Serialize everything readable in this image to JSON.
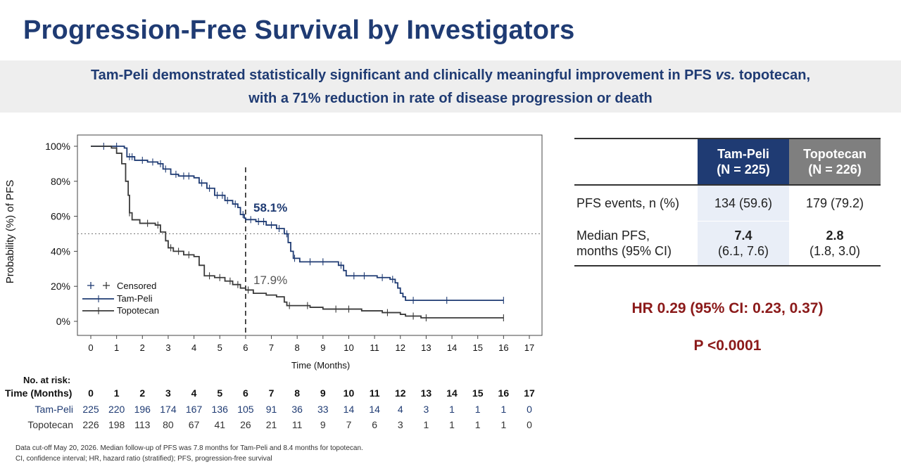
{
  "title": "Progression-Free Survival by Investigators",
  "banner": {
    "line1_pre": "Tam-Peli demonstrated statistically  significant and clinically  meaningful improvement in PFS ",
    "line1_vs": "vs.",
    "line1_post": " topotecan,",
    "line2": "with a 71% reduction in rate of disease progression or death"
  },
  "chart_data": {
    "type": "line",
    "title": "",
    "xlabel": "Time (Months)",
    "ylabel": "Probability (%) of PFS",
    "xlim": [
      0,
      17
    ],
    "ylim": [
      0,
      100
    ],
    "x_ticks": [
      "0",
      "1",
      "2",
      "3",
      "4",
      "5",
      "6",
      "7",
      "8",
      "9",
      "10",
      "11",
      "12",
      "13",
      "14",
      "15",
      "16",
      "17"
    ],
    "y_ticks": [
      "0%",
      "20%",
      "40%",
      "60%",
      "80%",
      "100%"
    ],
    "reference_lines": {
      "vertical_x": 6,
      "horizontal_y": 50
    },
    "legend": {
      "position": "bottom-left",
      "censored_label": "Censored"
    },
    "series": [
      {
        "name": "Tam-Peli",
        "color": "#1f3b73",
        "points": [
          [
            0,
            100
          ],
          [
            1.3,
            99
          ],
          [
            1.4,
            94
          ],
          [
            1.7,
            92
          ],
          [
            2.2,
            91
          ],
          [
            2.6,
            90
          ],
          [
            2.8,
            87
          ],
          [
            3.1,
            84
          ],
          [
            3.4,
            83
          ],
          [
            4.0,
            82
          ],
          [
            4.2,
            79
          ],
          [
            4.5,
            76
          ],
          [
            4.8,
            72
          ],
          [
            5.2,
            69
          ],
          [
            5.5,
            67
          ],
          [
            5.7,
            65
          ],
          [
            5.8,
            61
          ],
          [
            5.95,
            59
          ],
          [
            6.0,
            58.1
          ],
          [
            6.4,
            57
          ],
          [
            6.8,
            55
          ],
          [
            7.2,
            53
          ],
          [
            7.5,
            50
          ],
          [
            7.65,
            45
          ],
          [
            7.75,
            40
          ],
          [
            7.85,
            36
          ],
          [
            8.1,
            34
          ],
          [
            9.5,
            34
          ],
          [
            9.6,
            32
          ],
          [
            9.8,
            29
          ],
          [
            9.9,
            26
          ],
          [
            11.0,
            26
          ],
          [
            11.1,
            25
          ],
          [
            11.6,
            24
          ],
          [
            11.8,
            22
          ],
          [
            11.9,
            19
          ],
          [
            12.0,
            16
          ],
          [
            12.1,
            14
          ],
          [
            12.2,
            12
          ],
          [
            16.0,
            12
          ]
        ],
        "censored_x": [
          0.5,
          1.0,
          1.5,
          1.6,
          2.0,
          2.4,
          2.7,
          2.9,
          3.3,
          3.6,
          3.8,
          4.3,
          4.6,
          4.9,
          5.1,
          5.3,
          5.6,
          5.9,
          6.2,
          6.5,
          6.7,
          7.0,
          7.3,
          7.6,
          7.9,
          8.5,
          9.0,
          9.7,
          10.2,
          10.6,
          11.3,
          11.7,
          12.5,
          13.8,
          16.0
        ],
        "annotation": "58.1%"
      },
      {
        "name": "Topotecan",
        "color": "#3a3a3a",
        "points": [
          [
            0,
            100
          ],
          [
            0.8,
            99
          ],
          [
            1.0,
            96
          ],
          [
            1.2,
            90
          ],
          [
            1.35,
            80
          ],
          [
            1.45,
            72
          ],
          [
            1.5,
            62
          ],
          [
            1.6,
            58
          ],
          [
            1.9,
            56
          ],
          [
            2.5,
            55
          ],
          [
            2.7,
            51
          ],
          [
            2.9,
            46
          ],
          [
            3.0,
            42
          ],
          [
            3.2,
            40
          ],
          [
            3.6,
            38
          ],
          [
            4.0,
            37
          ],
          [
            4.2,
            32
          ],
          [
            4.4,
            26
          ],
          [
            4.8,
            25
          ],
          [
            5.2,
            23
          ],
          [
            5.5,
            21
          ],
          [
            5.8,
            19
          ],
          [
            6.0,
            17.9
          ],
          [
            6.3,
            16
          ],
          [
            6.8,
            15
          ],
          [
            7.2,
            14
          ],
          [
            7.5,
            11
          ],
          [
            7.6,
            9
          ],
          [
            8.5,
            8
          ],
          [
            9.0,
            7
          ],
          [
            10.5,
            6
          ],
          [
            11.3,
            5
          ],
          [
            12.0,
            4
          ],
          [
            12.2,
            3
          ],
          [
            12.8,
            2
          ],
          [
            16.0,
            2
          ]
        ],
        "censored_x": [
          1.5,
          2.2,
          2.6,
          3.1,
          3.4,
          3.8,
          4.6,
          5.0,
          5.4,
          5.7,
          6.1,
          7.7,
          8.4,
          9.5,
          10.0,
          11.5,
          12.5,
          13.0,
          16.0
        ],
        "annotation": "17.9%"
      }
    ]
  },
  "risk": {
    "header": "No. at risk:",
    "time_label": "Time (Months)",
    "times": [
      "0",
      "1",
      "2",
      "3",
      "4",
      "5",
      "6",
      "7",
      "8",
      "9",
      "10",
      "11",
      "12",
      "13",
      "14",
      "15",
      "16",
      "17"
    ],
    "rows": [
      {
        "name": "Tam-Peli",
        "values": [
          "225",
          "220",
          "196",
          "174",
          "167",
          "136",
          "105",
          "91",
          "36",
          "33",
          "14",
          "14",
          "4",
          "3",
          "1",
          "1",
          "1",
          "0"
        ]
      },
      {
        "name": "Topotecan",
        "values": [
          "226",
          "198",
          "113",
          "80",
          "67",
          "41",
          "26",
          "21",
          "11",
          "9",
          "7",
          "6",
          "3",
          "1",
          "1",
          "1",
          "1",
          "0"
        ]
      }
    ]
  },
  "table": {
    "col1": {
      "line1": "Tam-Peli",
      "line2": "(N = 225)"
    },
    "col2": {
      "line1": "Topotecan",
      "line2": "(N = 226)"
    },
    "row1": {
      "label": "PFS events, n (%)",
      "v1": "134 (59.6)",
      "v2": "179 (79.2)"
    },
    "row2": {
      "label_l1": "Median PFS,",
      "label_l2": "months (95% CI)",
      "v1_main": "7.4",
      "v1_ci": "(6.1, 7.6)",
      "v2_main": "2.8",
      "v2_ci": "(1.8, 3.0)"
    }
  },
  "stats": {
    "hr": "HR 0.29 (95%  CI: 0.23, 0.37)",
    "p": "P <0.0001"
  },
  "footnotes": {
    "line1": "Data cut-off May 20, 2026. Median  follow-up of PFS was 7.8 months for Tam-Peli and 8.4 months for topotecan.",
    "line2": "CI,  confidence interval; HR, hazard ratio (stratified); PFS, progression-free survival"
  },
  "colors": {
    "navy": "#1f3b73",
    "red": "#8b1a1a",
    "grey_header": "#7f7f7f"
  }
}
